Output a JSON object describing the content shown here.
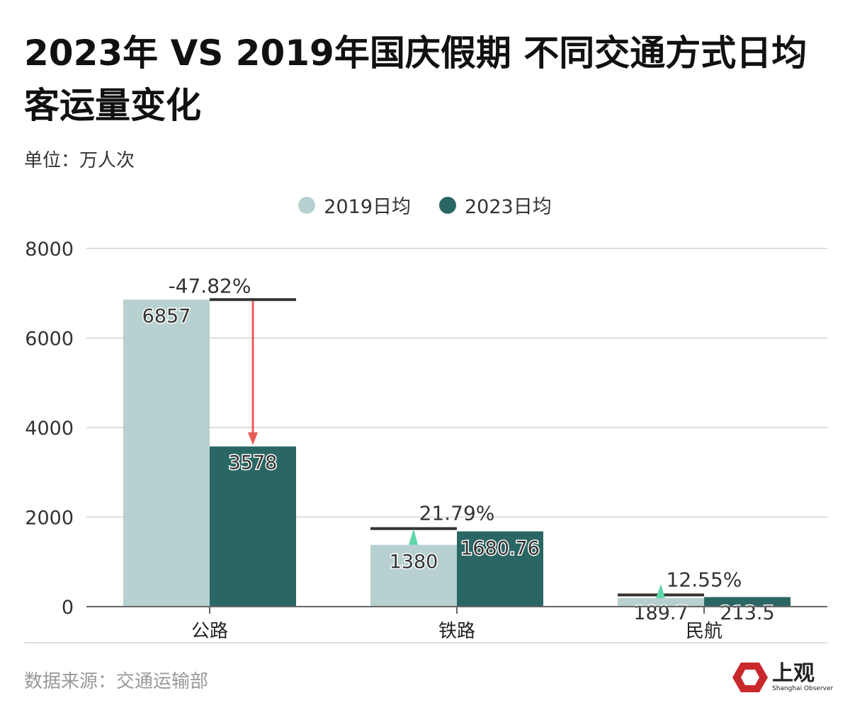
{
  "title": "2023年 VS 2019年国庆假期 不同交通方式日均客运量变化",
  "unit": "单位：万人次",
  "source": "数据来源：交通运输部",
  "logo": {
    "name": "上观",
    "subtitle": "Shanghai Observer"
  },
  "colors": {
    "s2019": "#b7d0d0",
    "s2023": "#2a6764",
    "up": "#5ed6a8",
    "down": "#e85b57"
  },
  "chart_data": {
    "type": "bar",
    "title": "2023年 VS 2019年国庆假期 不同交通方式日均客运量变化",
    "ylabel": "单位：万人次",
    "categories": [
      "公路",
      "铁路",
      "民航"
    ],
    "series": [
      {
        "name": "2019日均",
        "values": [
          6857,
          1380,
          189.7
        ]
      },
      {
        "name": "2023日均",
        "values": [
          3578,
          1680.76,
          213.5
        ]
      }
    ],
    "value_labels": [
      [
        "6857",
        "1380",
        "189.7"
      ],
      [
        "3578",
        "1680.76",
        "213.5"
      ]
    ],
    "changes": [
      "-47.82%",
      "21.79%",
      "12.55%"
    ],
    "ylim": [
      0,
      8000
    ],
    "yticks": [
      "0",
      "2000",
      "4000",
      "6000",
      "8000"
    ],
    "grid": true,
    "legend": "top-center"
  }
}
